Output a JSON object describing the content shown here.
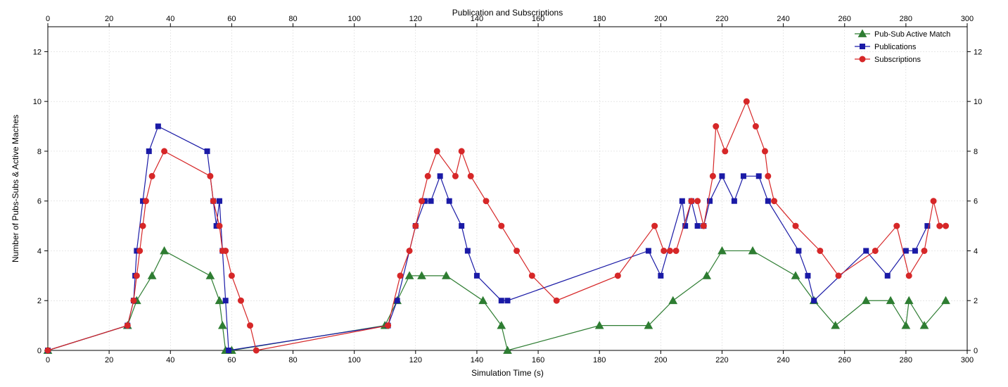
{
  "chart": {
    "type": "line",
    "title_top": "Publication and Subscriptions",
    "title_bottom_x": "Simulation Time (s)",
    "title_left_y": "Number of Pubs-Subs & Active Maches",
    "title_fontsize": 12,
    "label_fontsize": 12,
    "tick_fontsize": 11,
    "background_color": "#ffffff",
    "grid_color": "#d0d0d0",
    "axis_color": "#000000",
    "xlim": [
      0,
      300
    ],
    "ylim": [
      0,
      13
    ],
    "xtick_step": 20,
    "ytick_step": 2,
    "xticks": [
      0,
      20,
      40,
      60,
      80,
      100,
      120,
      140,
      160,
      180,
      200,
      220,
      240,
      260,
      280,
      300
    ],
    "yticks": [
      0,
      2,
      4,
      6,
      8,
      10,
      12
    ],
    "line_width": 1.2,
    "marker_size": 5,
    "legend": {
      "position": "upper-right",
      "items": [
        {
          "label": "Pub-Sub Active Match",
          "color": "#2e7d32",
          "marker": "triangle"
        },
        {
          "label": "Publications",
          "color": "#1a1aa6",
          "marker": "square"
        },
        {
          "label": "Subscriptions",
          "color": "#d62728",
          "marker": "circle"
        }
      ]
    },
    "series": {
      "active_match": {
        "color": "#2e7d32",
        "marker": "triangle",
        "data": [
          [
            0,
            0
          ],
          [
            26,
            1
          ],
          [
            29,
            2
          ],
          [
            34,
            3
          ],
          [
            38,
            4
          ],
          [
            53,
            3
          ],
          [
            56,
            2
          ],
          [
            57,
            1
          ],
          [
            58,
            0
          ],
          [
            60,
            0
          ],
          [
            110,
            1
          ],
          [
            114,
            2
          ],
          [
            118,
            3
          ],
          [
            122,
            3
          ],
          [
            130,
            3
          ],
          [
            142,
            2
          ],
          [
            148,
            1
          ],
          [
            150,
            0
          ],
          [
            180,
            1
          ],
          [
            196,
            1
          ],
          [
            204,
            2
          ],
          [
            215,
            3
          ],
          [
            220,
            4
          ],
          [
            230,
            4
          ],
          [
            244,
            3
          ],
          [
            250,
            2
          ],
          [
            257,
            1
          ],
          [
            267,
            2
          ],
          [
            275,
            2
          ],
          [
            280,
            1
          ],
          [
            281,
            2
          ],
          [
            286,
            1
          ],
          [
            293,
            2
          ]
        ]
      },
      "publications": {
        "color": "#1a1aa6",
        "marker": "square",
        "data": [
          [
            0,
            0
          ],
          [
            26,
            1
          ],
          [
            28,
            2
          ],
          [
            28.5,
            3
          ],
          [
            29,
            4
          ],
          [
            31,
            6
          ],
          [
            33,
            8
          ],
          [
            36,
            9
          ],
          [
            52,
            8
          ],
          [
            54,
            6
          ],
          [
            55,
            5
          ],
          [
            56,
            6
          ],
          [
            57,
            4
          ],
          [
            58,
            2
          ],
          [
            59,
            0
          ],
          [
            111,
            1
          ],
          [
            114,
            2
          ],
          [
            120,
            5
          ],
          [
            123,
            6
          ],
          [
            125,
            6
          ],
          [
            128,
            7
          ],
          [
            131,
            6
          ],
          [
            135,
            5
          ],
          [
            137,
            4
          ],
          [
            140,
            3
          ],
          [
            148,
            2
          ],
          [
            150,
            2
          ],
          [
            196,
            4
          ],
          [
            200,
            3
          ],
          [
            207,
            6
          ],
          [
            208,
            5
          ],
          [
            210,
            6
          ],
          [
            212,
            5
          ],
          [
            214,
            5
          ],
          [
            216,
            6
          ],
          [
            220,
            7
          ],
          [
            224,
            6
          ],
          [
            227,
            7
          ],
          [
            232,
            7
          ],
          [
            235,
            6
          ],
          [
            245,
            4
          ],
          [
            248,
            3
          ],
          [
            250,
            2
          ],
          [
            267,
            4
          ],
          [
            274,
            3
          ],
          [
            280,
            4
          ],
          [
            283,
            4
          ],
          [
            287,
            5
          ]
        ]
      },
      "subscriptions": {
        "color": "#d62728",
        "marker": "circle",
        "data": [
          [
            0,
            0
          ],
          [
            26,
            1
          ],
          [
            28,
            2
          ],
          [
            29,
            3
          ],
          [
            30,
            4
          ],
          [
            31,
            5
          ],
          [
            32,
            6
          ],
          [
            34,
            7
          ],
          [
            38,
            8
          ],
          [
            53,
            7
          ],
          [
            54,
            6
          ],
          [
            56,
            5
          ],
          [
            57,
            4
          ],
          [
            58,
            4
          ],
          [
            60,
            3
          ],
          [
            63,
            2
          ],
          [
            66,
            1
          ],
          [
            68,
            0
          ],
          [
            111,
            1
          ],
          [
            115,
            3
          ],
          [
            118,
            4
          ],
          [
            120,
            5
          ],
          [
            122,
            6
          ],
          [
            124,
            7
          ],
          [
            127,
            8
          ],
          [
            133,
            7
          ],
          [
            135,
            8
          ],
          [
            138,
            7
          ],
          [
            143,
            6
          ],
          [
            148,
            5
          ],
          [
            153,
            4
          ],
          [
            158,
            3
          ],
          [
            166,
            2
          ],
          [
            186,
            3
          ],
          [
            198,
            5
          ],
          [
            201,
            4
          ],
          [
            203,
            4
          ],
          [
            205,
            4
          ],
          [
            210,
            6
          ],
          [
            212,
            6
          ],
          [
            214,
            5
          ],
          [
            217,
            7
          ],
          [
            218,
            9
          ],
          [
            221,
            8
          ],
          [
            228,
            10
          ],
          [
            231,
            9
          ],
          [
            234,
            8
          ],
          [
            235,
            7
          ],
          [
            237,
            6
          ],
          [
            244,
            5
          ],
          [
            252,
            4
          ],
          [
            258,
            3
          ],
          [
            270,
            4
          ],
          [
            277,
            5
          ],
          [
            281,
            3
          ],
          [
            286,
            4
          ],
          [
            289,
            6
          ],
          [
            291,
            5
          ],
          [
            293,
            5
          ]
        ]
      }
    }
  }
}
